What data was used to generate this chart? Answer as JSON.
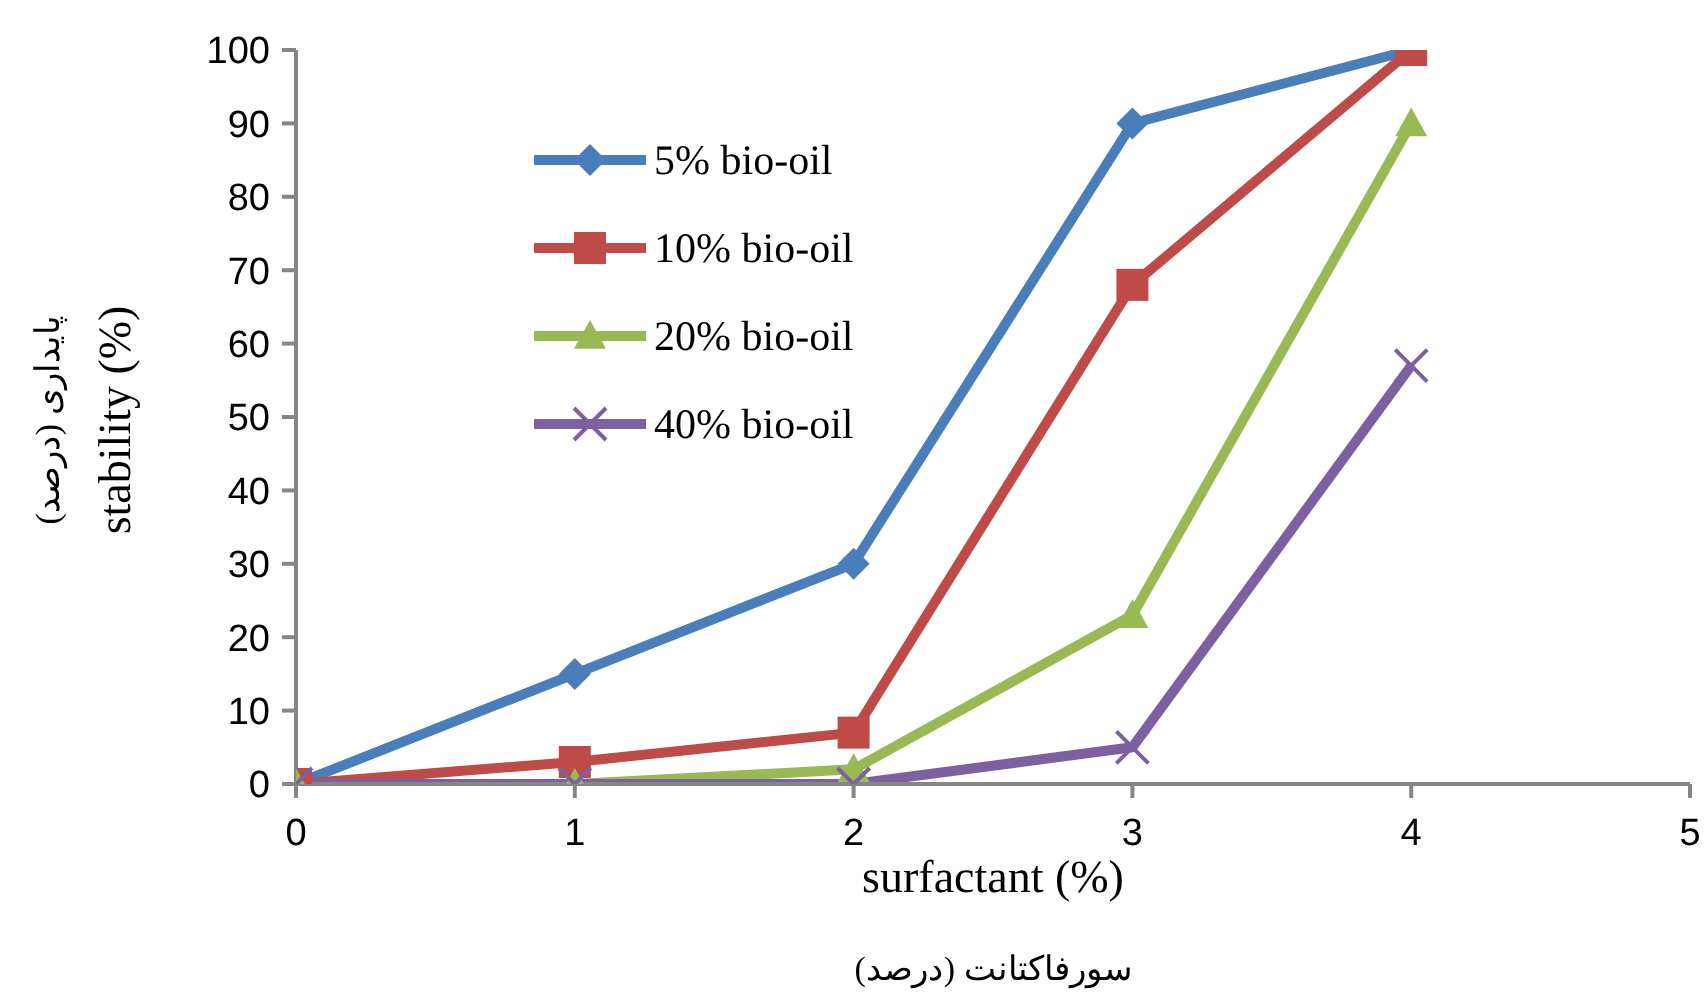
{
  "chart_data": {
    "type": "line",
    "xlabel": "surfactant (%)",
    "ylabel": "stability (%)",
    "annotations": [
      "سورفاکتانت (درصد)",
      "پایداری (درصد)"
    ],
    "x": [
      0,
      1,
      2,
      3,
      4
    ],
    "xlim": [
      0,
      5
    ],
    "xticks": [
      0,
      1,
      2,
      3,
      4,
      5
    ],
    "ylim": [
      0,
      100
    ],
    "yticks": [
      0,
      10,
      20,
      30,
      40,
      50,
      60,
      70,
      80,
      90,
      100
    ],
    "grid": false,
    "legend": "top left",
    "line_style": "solid",
    "series": [
      {
        "name": "5% bio-oil",
        "color": "#4a7ebb",
        "marker": "diamond",
        "values": [
          0,
          15,
          30,
          90,
          100
        ]
      },
      {
        "name": "10% bio-oil",
        "color": "#be4b48",
        "marker": "square",
        "values": [
          0,
          3,
          7,
          68,
          100
        ]
      },
      {
        "name": "20% bio-oil",
        "color": "#98b954",
        "marker": "triangle",
        "values": [
          0,
          0,
          2,
          23,
          90
        ]
      },
      {
        "name": "40% bio-oil",
        "color": "#7d60a0",
        "marker": "cross",
        "values": [
          0,
          0,
          0,
          5,
          57
        ]
      }
    ]
  }
}
